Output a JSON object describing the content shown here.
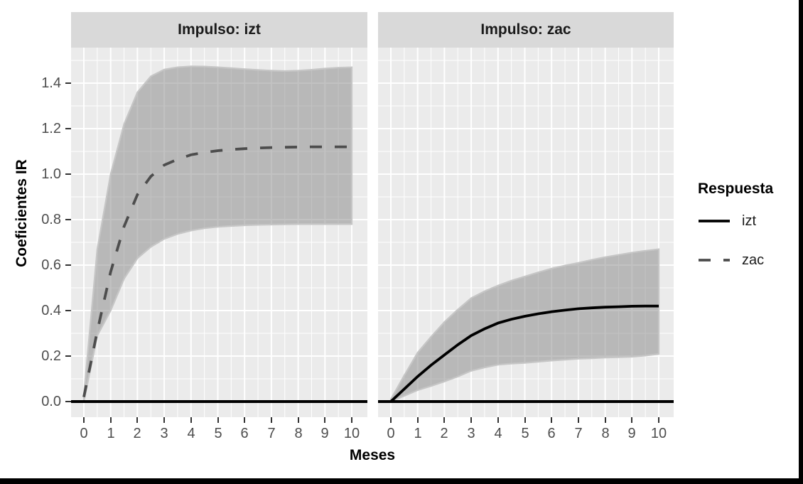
{
  "figure": {
    "x_axis_title": "Meses",
    "y_axis_title": "Coeficientes IR",
    "x_ticks": [
      "0",
      "1",
      "2",
      "3",
      "4",
      "5",
      "6",
      "7",
      "8",
      "9",
      "10"
    ],
    "y_ticks": [
      "0.0",
      "0.2",
      "0.4",
      "0.6",
      "0.8",
      "1.0",
      "1.2",
      "1.4"
    ]
  },
  "legend": {
    "title": "Respuesta",
    "items": [
      {
        "label": "izt",
        "line_style": "solid",
        "color": "#000000"
      },
      {
        "label": "zac",
        "line_style": "dashed",
        "color": "#4d4d4d"
      }
    ]
  },
  "colors": {
    "panel_bg": "#ebebeb",
    "strip_bg": "#d9d9d9",
    "grid": "#ffffff",
    "band_fill": "rgba(128,128,128,0.48)",
    "band_edge": "#c6c6c6",
    "zero_line": "#000000",
    "tick": "#333333",
    "tick_label": "#4d4d4d"
  },
  "chart_data": [
    {
      "type": "area+line",
      "facet": "Impulso: izt",
      "xlabel": "Meses",
      "ylabel": "Coeficientes IR",
      "xlim": [
        0,
        10
      ],
      "y_tick_range": [
        0.0,
        1.4
      ],
      "grid": "major+minor",
      "zero_line": true,
      "series": [
        {
          "name": "zac",
          "style": "dashed",
          "color": "#4d4d4d",
          "x": [
            0,
            0.5,
            1,
            1.5,
            2,
            2.5,
            3,
            3.5,
            4,
            4.5,
            5,
            5.5,
            6,
            6.5,
            7,
            7.5,
            8,
            8.5,
            9,
            9.5,
            10
          ],
          "mean": [
            0.02,
            0.31,
            0.57,
            0.77,
            0.91,
            0.99,
            1.04,
            1.065,
            1.085,
            1.095,
            1.103,
            1.108,
            1.112,
            1.115,
            1.117,
            1.118,
            1.119,
            1.12,
            1.12,
            1.12,
            1.12
          ],
          "upper": [
            0.03,
            0.67,
            1.0,
            1.22,
            1.36,
            1.43,
            1.46,
            1.47,
            1.474,
            1.473,
            1.47,
            1.466,
            1.462,
            1.458,
            1.455,
            1.453,
            1.455,
            1.459,
            1.464,
            1.468,
            1.47
          ],
          "lower": [
            0.0,
            0.29,
            0.4,
            0.54,
            0.63,
            0.68,
            0.715,
            0.737,
            0.752,
            0.762,
            0.768,
            0.772,
            0.775,
            0.777,
            0.778,
            0.779,
            0.78,
            0.78,
            0.78,
            0.78,
            0.78
          ]
        }
      ]
    },
    {
      "type": "area+line",
      "facet": "Impulso: zac",
      "xlabel": "Meses",
      "ylabel": "Coeficientes IR",
      "xlim": [
        0,
        10
      ],
      "y_tick_range": [
        0.0,
        1.4
      ],
      "grid": "major+minor",
      "zero_line": true,
      "series": [
        {
          "name": "izt",
          "style": "solid",
          "color": "#000000",
          "x": [
            0,
            0.5,
            1,
            1.5,
            2,
            2.5,
            3,
            3.5,
            4,
            4.5,
            5,
            5.5,
            6,
            6.5,
            7,
            7.5,
            8,
            8.5,
            9,
            9.5,
            10
          ],
          "mean": [
            0.0,
            0.055,
            0.11,
            0.16,
            0.205,
            0.25,
            0.29,
            0.32,
            0.345,
            0.362,
            0.375,
            0.386,
            0.395,
            0.402,
            0.408,
            0.412,
            0.415,
            0.417,
            0.419,
            0.42,
            0.42
          ],
          "upper": [
            0.01,
            0.115,
            0.215,
            0.285,
            0.35,
            0.405,
            0.455,
            0.485,
            0.51,
            0.532,
            0.55,
            0.568,
            0.585,
            0.598,
            0.61,
            0.623,
            0.635,
            0.645,
            0.655,
            0.663,
            0.67
          ],
          "lower": [
            0.0,
            0.025,
            0.05,
            0.068,
            0.088,
            0.11,
            0.135,
            0.15,
            0.162,
            0.167,
            0.17,
            0.175,
            0.18,
            0.184,
            0.188,
            0.19,
            0.193,
            0.195,
            0.197,
            0.202,
            0.209
          ]
        }
      ]
    }
  ]
}
